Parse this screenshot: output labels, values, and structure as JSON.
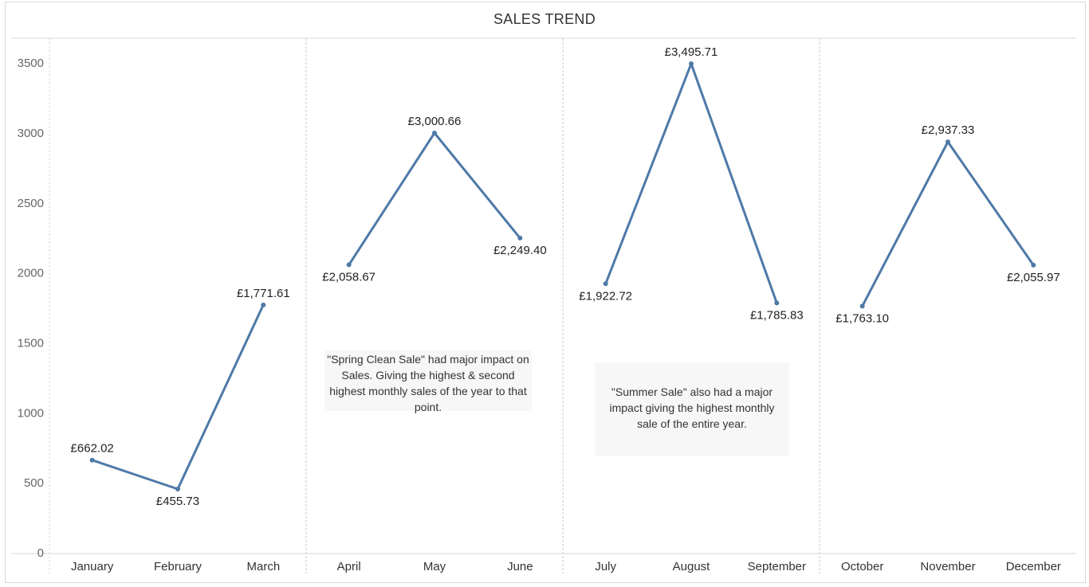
{
  "chart_data": {
    "type": "line",
    "title": "SALES TREND",
    "xlabel": "",
    "ylabel": "",
    "ylim": [
      0,
      3700
    ],
    "yticks": [
      0,
      500,
      1000,
      1500,
      2000,
      2500,
      3000,
      3500
    ],
    "grid": false,
    "categories": [
      "January",
      "February",
      "March",
      "April",
      "May",
      "June",
      "July",
      "August",
      "September",
      "October",
      "November",
      "December"
    ],
    "series": [
      {
        "values": [
          662.02,
          455.73,
          1771.61,
          2058.67,
          3000.66,
          2249.4,
          1922.72,
          3495.71,
          1785.83,
          1763.1,
          2937.33,
          2055.97
        ]
      }
    ],
    "data_labels": [
      "£662.02",
      "£455.73",
      "£1,771.61",
      "£2,058.67",
      "£3,000.66",
      "£2,249.40",
      "£1,922.72",
      "£3,495.71",
      "£1,785.83",
      "£1,763.10",
      "£2,937.33",
      "£2,055.97"
    ],
    "quarter_separators": true,
    "line_color": "#4e79a7",
    "annotations": [
      {
        "text": "\"Spring Clean Sale\" had major impact on Sales. Giving the highest & second highest monthly sales of the year to that point."
      },
      {
        "text": "\"Summer Sale\" also had a major impact giving the highest monthly sale of the entire year."
      }
    ]
  }
}
